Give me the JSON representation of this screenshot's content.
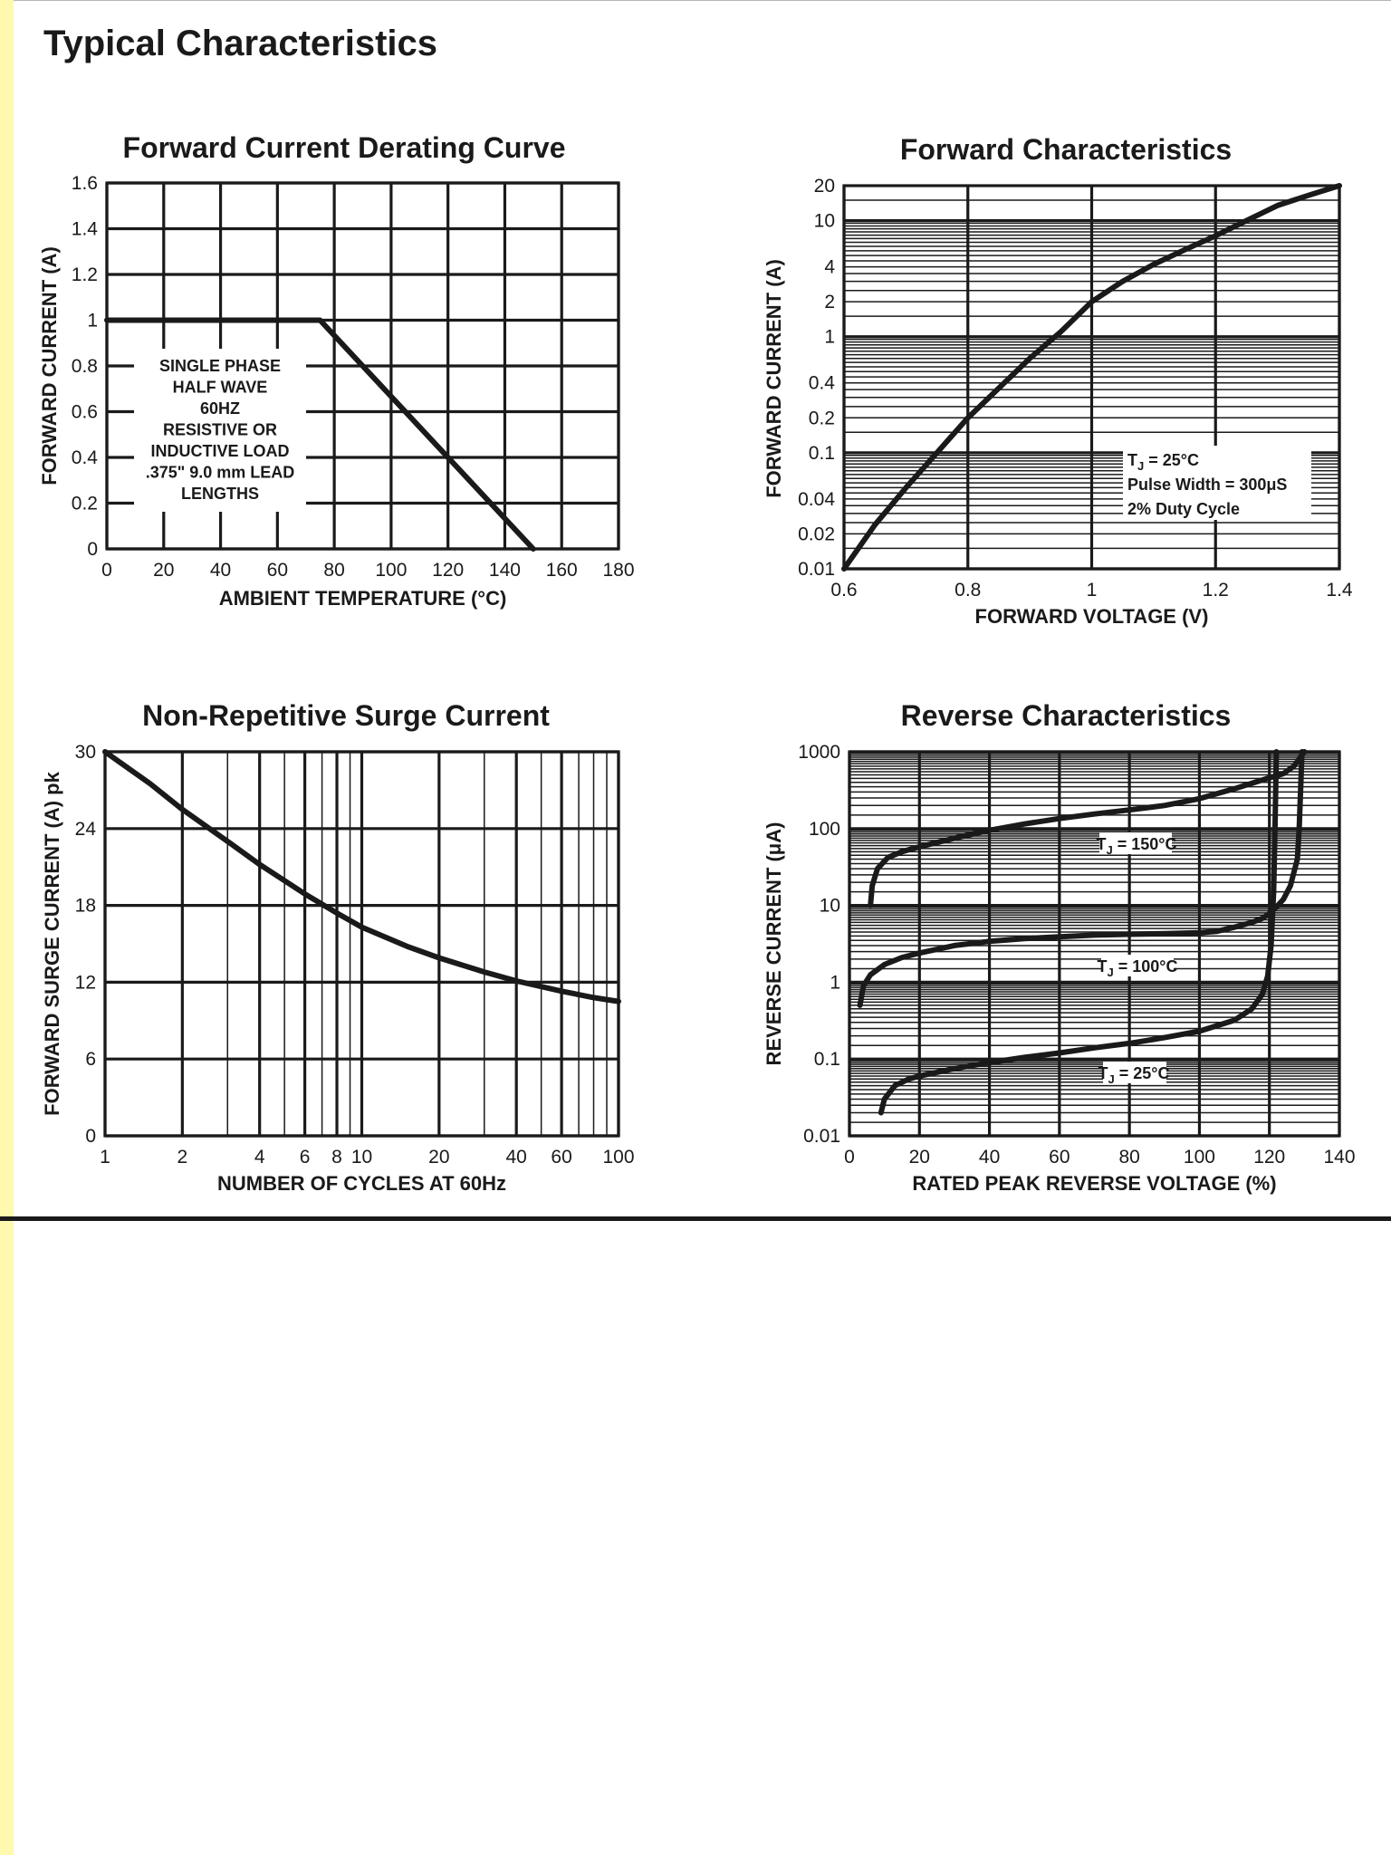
{
  "page": {
    "title": "Typical Characteristics"
  },
  "chart_data": [
    {
      "id": "derating",
      "type": "line",
      "title": "Forward Current Derating Curve",
      "xlabel": "AMBIENT TEMPERATURE (°C)",
      "ylabel": "FORWARD CURRENT (A)",
      "xscale": "linear",
      "yscale": "linear",
      "xlim": [
        0,
        180
      ],
      "ylim": [
        0,
        1.6
      ],
      "grid": true,
      "x_ticks": [
        0,
        20,
        40,
        60,
        80,
        100,
        120,
        140,
        160,
        180
      ],
      "x_tick_labels": [
        "0",
        "20",
        "40",
        "60",
        "80",
        "100",
        "120",
        "140",
        "160",
        "180"
      ],
      "y_ticks": [
        0,
        0.2,
        0.4,
        0.6,
        0.8,
        1,
        1.2,
        1.4,
        1.6
      ],
      "y_tick_labels": [
        "0",
        "0.2",
        "0.4",
        "0.6",
        "0.8",
        "1",
        "1.2",
        "1.4",
        "1.6"
      ],
      "series": [
        {
          "x": [
            0,
            75,
            150
          ],
          "y": [
            1,
            1,
            0
          ]
        }
      ],
      "annotation_box": {
        "lines": [
          "SINGLE PHASE",
          "HALF WAVE",
          "60HZ",
          "RESISTIVE OR",
          "INDUCTIVE LOAD",
          ".375\" 9.0 mm LEAD",
          "LENGTHS"
        ]
      }
    },
    {
      "id": "forward",
      "type": "line",
      "title": "Forward Characteristics",
      "xlabel": "FORWARD VOLTAGE (V)",
      "ylabel": "FORWARD CURRENT (A)",
      "xscale": "linear",
      "yscale": "log",
      "xlim": [
        0.6,
        1.4
      ],
      "ylim": [
        0.01,
        20
      ],
      "grid": true,
      "x_ticks": [
        0.6,
        0.8,
        1,
        1.2,
        1.4
      ],
      "x_tick_labels": [
        "0.6",
        "0.8",
        "1",
        "1.2",
        "1.4"
      ],
      "y_ticks": [
        0.01,
        0.02,
        0.04,
        0.1,
        0.2,
        0.4,
        1,
        2,
        4,
        10,
        20
      ],
      "y_tick_labels": [
        "0.01",
        "0.02",
        "0.04",
        "0.1",
        "0.2",
        "0.4",
        "1",
        "2",
        "4",
        "10",
        "20"
      ],
      "series": [
        {
          "x": [
            0.6,
            0.65,
            0.7,
            0.75,
            0.8,
            0.85,
            0.9,
            0.95,
            1.0,
            1.05,
            1.1,
            1.15,
            1.2,
            1.25,
            1.3,
            1.35,
            1.4
          ],
          "y": [
            0.01,
            0.024,
            0.05,
            0.1,
            0.2,
            0.36,
            0.65,
            1.1,
            2.0,
            3.0,
            4.2,
            5.6,
            7.4,
            10,
            13.5,
            16.5,
            20
          ]
        }
      ],
      "annotation_box": {
        "lines": [
          "T_J = 25°C",
          "Pulse Width = 300μS",
          "2% Duty Cycle"
        ]
      }
    },
    {
      "id": "surge",
      "type": "line",
      "title": "Non-Repetitive Surge Current",
      "xlabel": "NUMBER OF CYCLES AT 60Hz",
      "ylabel": "FORWARD SURGE CURRENT (A) pk",
      "xscale": "log",
      "yscale": "linear",
      "xlim": [
        1,
        100
      ],
      "ylim": [
        0,
        30
      ],
      "grid": true,
      "x_ticks": [
        1,
        2,
        4,
        6,
        8,
        10,
        20,
        40,
        60,
        100
      ],
      "x_tick_labels": [
        "1",
        "2",
        "4",
        "6",
        "8",
        "10",
        "20",
        "40",
        "60",
        "100"
      ],
      "y_ticks": [
        0,
        6,
        12,
        18,
        24,
        30
      ],
      "y_tick_labels": [
        "0",
        "6",
        "12",
        "18",
        "24",
        "30"
      ],
      "series": [
        {
          "x": [
            1,
            1.5,
            2,
            3,
            4,
            6,
            8,
            10,
            15,
            20,
            30,
            40,
            60,
            80,
            100
          ],
          "y": [
            30,
            27.5,
            25.5,
            23,
            21.2,
            18.9,
            17.4,
            16.3,
            14.8,
            13.9,
            12.8,
            12.1,
            11.3,
            10.8,
            10.5
          ]
        }
      ]
    },
    {
      "id": "reverse",
      "type": "line",
      "title": "Reverse Characteristics",
      "xlabel": "RATED PEAK REVERSE VOLTAGE (%)",
      "ylabel": "REVERSE CURRENT (μA)",
      "xscale": "linear",
      "yscale": "log",
      "xlim": [
        0,
        140
      ],
      "ylim": [
        0.01,
        1000
      ],
      "grid": true,
      "x_ticks": [
        0,
        20,
        40,
        60,
        80,
        100,
        120,
        140
      ],
      "x_tick_labels": [
        "0",
        "20",
        "40",
        "60",
        "80",
        "100",
        "120",
        "140"
      ],
      "y_ticks": [
        0.01,
        0.1,
        1,
        10,
        100,
        1000
      ],
      "y_tick_labels": [
        "0.01",
        "0.1",
        "1",
        "10",
        "100",
        "1000"
      ],
      "series": [
        {
          "name": "T_J = 150°C",
          "x": [
            6,
            6.5,
            8,
            11,
            15,
            20,
            30,
            40,
            50,
            60,
            70,
            80,
            90,
            100,
            110,
            118,
            124,
            127,
            130
          ],
          "y": [
            10,
            18,
            30,
            42,
            50,
            58,
            75,
            95,
            115,
            135,
            155,
            175,
            200,
            245,
            330,
            430,
            520,
            650,
            1000
          ]
        },
        {
          "name": "T_J = 100°C",
          "x": [
            3,
            4,
            6,
            10,
            15,
            20,
            30,
            40,
            50,
            60,
            70,
            80,
            90,
            100,
            105,
            110,
            115,
            118,
            120,
            122,
            124,
            126,
            128,
            128.5,
            129,
            129.3
          ],
          "y": [
            0.5,
            0.9,
            1.25,
            1.7,
            2.1,
            2.4,
            3.0,
            3.4,
            3.7,
            3.9,
            4.1,
            4.2,
            4.3,
            4.4,
            4.6,
            5.2,
            6.0,
            6.8,
            7.8,
            9.5,
            12,
            18,
            40,
            100,
            400,
            1000
          ]
        },
        {
          "name": "T_J = 25°C",
          "x": [
            9,
            10,
            13,
            17,
            20,
            30,
            40,
            50,
            60,
            70,
            80,
            90,
            100,
            110,
            115,
            118,
            119.5,
            120.5,
            121.2,
            121.6,
            122
          ],
          "y": [
            0.02,
            0.03,
            0.045,
            0.055,
            0.06,
            0.075,
            0.09,
            0.105,
            0.12,
            0.14,
            0.16,
            0.19,
            0.23,
            0.32,
            0.45,
            0.7,
            1.2,
            3,
            15,
            100,
            1000
          ]
        }
      ]
    }
  ]
}
